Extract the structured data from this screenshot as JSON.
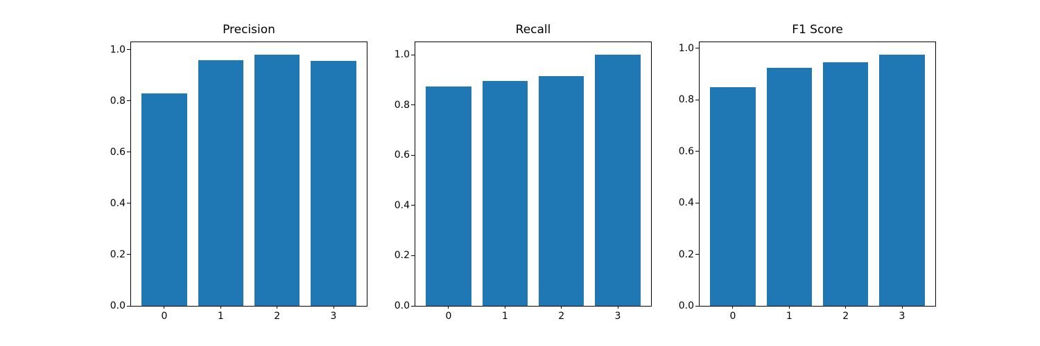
{
  "figure": {
    "background": "#ffffff",
    "bar_color": "#1f77b4"
  },
  "chart_data": [
    {
      "type": "bar",
      "title": "Precision",
      "xlabel": "",
      "ylabel": "",
      "categories": [
        "0",
        "1",
        "2",
        "3"
      ],
      "values": [
        0.83,
        0.96,
        0.98,
        0.955
      ],
      "ylim": [
        0,
        1.029
      ],
      "xlim": [
        -0.59,
        3.59
      ],
      "bar_width": 0.8,
      "yticks": [
        0.0,
        0.2,
        0.4,
        0.6,
        0.8,
        1.0
      ],
      "y_tick_labels": [
        "0.0",
        "0.2",
        "0.4",
        "0.6",
        "0.8",
        "1.0"
      ],
      "bar_color": "#1f77b4",
      "grid": false,
      "legend": null
    },
    {
      "type": "bar",
      "title": "Recall",
      "xlabel": "",
      "ylabel": "",
      "categories": [
        "0",
        "1",
        "2",
        "3"
      ],
      "values": [
        0.875,
        0.895,
        0.915,
        1.0
      ],
      "ylim": [
        0,
        1.05
      ],
      "xlim": [
        -0.59,
        3.59
      ],
      "bar_width": 0.8,
      "yticks": [
        0.0,
        0.2,
        0.4,
        0.6,
        0.8,
        1.0
      ],
      "y_tick_labels": [
        "0.0",
        "0.2",
        "0.4",
        "0.6",
        "0.8",
        "1.0"
      ],
      "bar_color": "#1f77b4",
      "grid": false,
      "legend": null
    },
    {
      "type": "bar",
      "title": "F1 Score",
      "xlabel": "",
      "ylabel": "",
      "categories": [
        "0",
        "1",
        "2",
        "3"
      ],
      "values": [
        0.85,
        0.925,
        0.945,
        0.975
      ],
      "ylim": [
        0,
        1.024
      ],
      "xlim": [
        -0.59,
        3.59
      ],
      "bar_width": 0.8,
      "yticks": [
        0.0,
        0.2,
        0.4,
        0.6,
        0.8,
        1.0
      ],
      "y_tick_labels": [
        "0.0",
        "0.2",
        "0.4",
        "0.6",
        "0.8",
        "1.0"
      ],
      "bar_color": "#1f77b4",
      "grid": false,
      "legend": null
    }
  ]
}
